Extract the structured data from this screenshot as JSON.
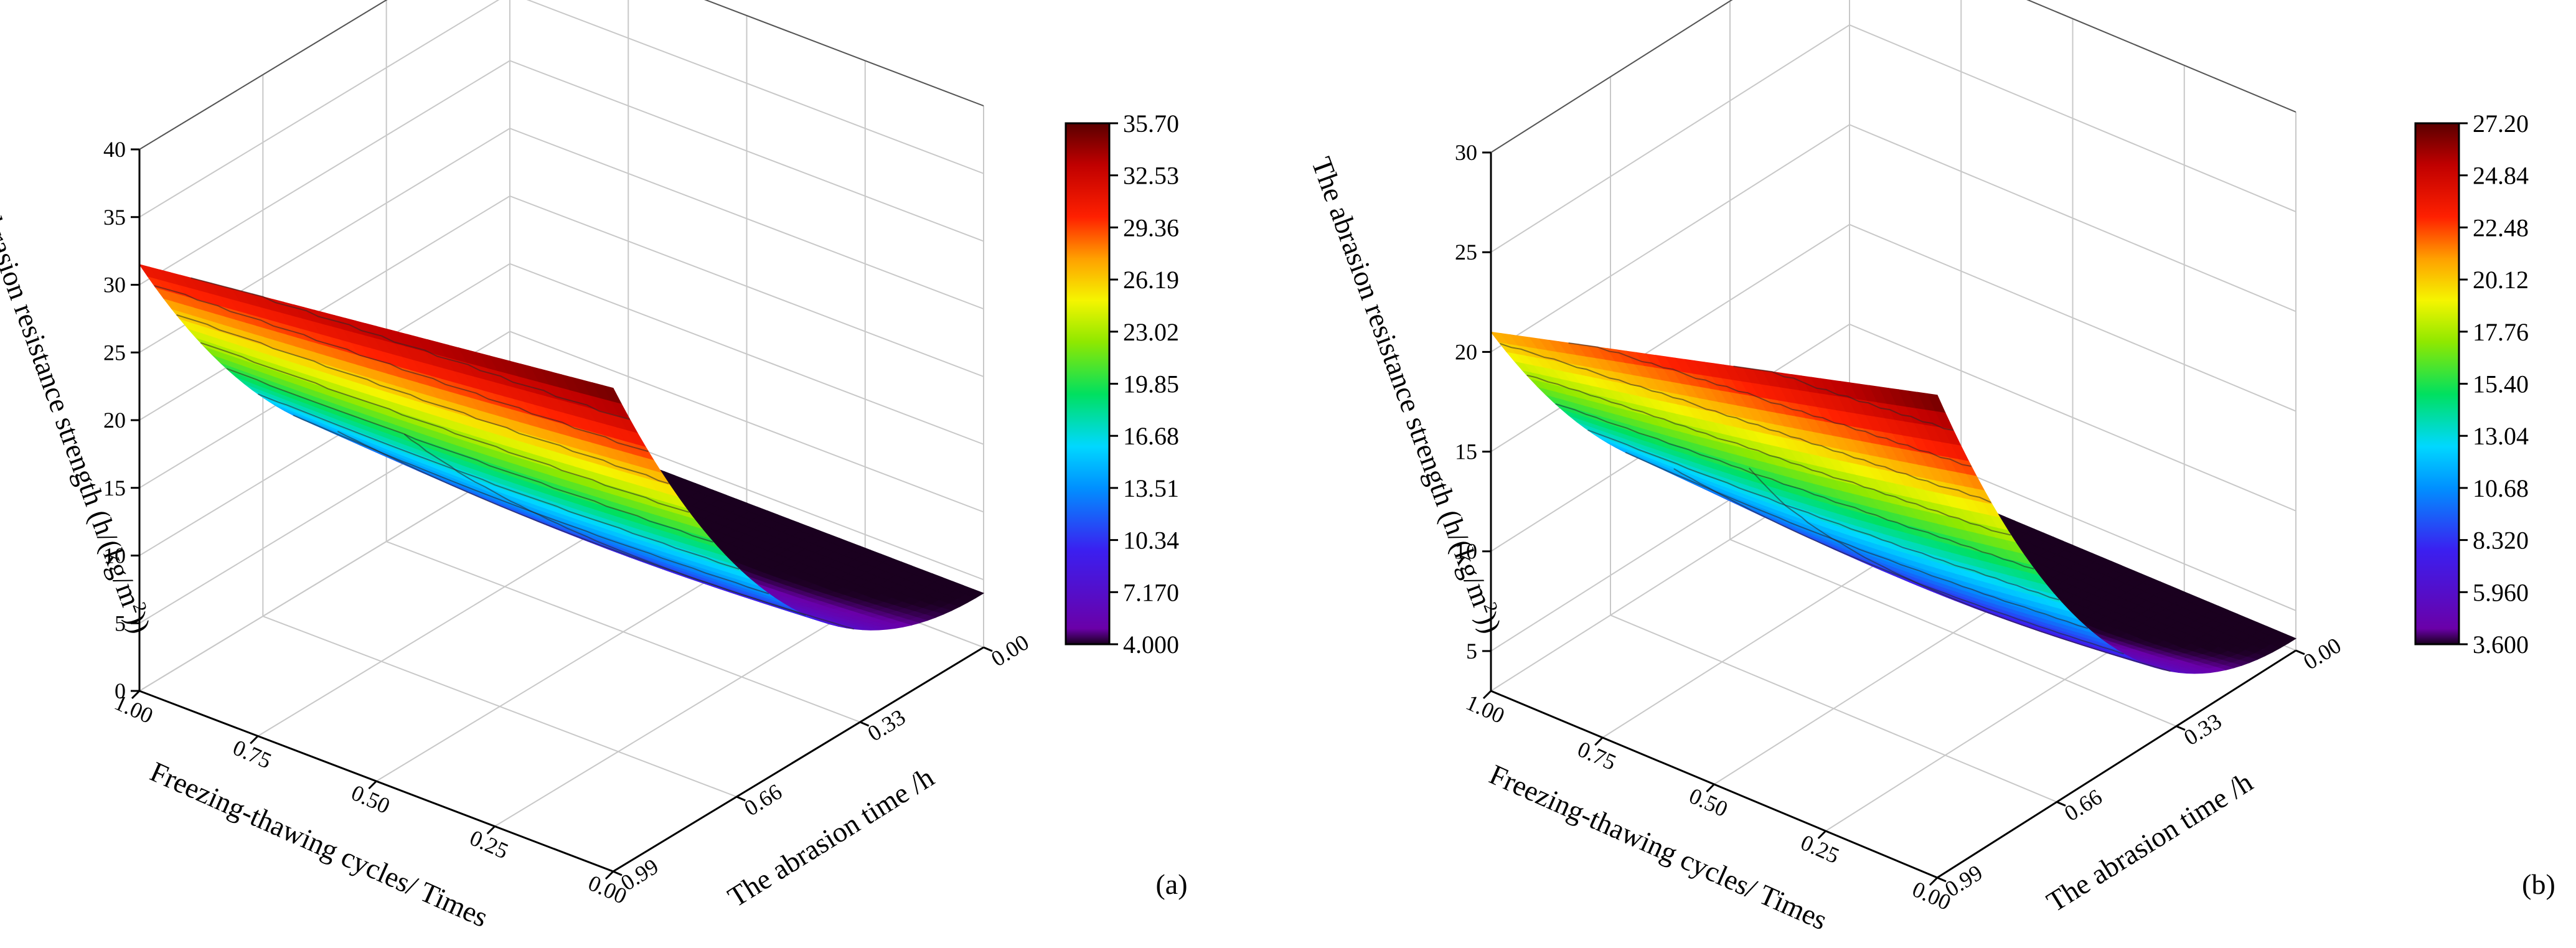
{
  "chart_data": [
    {
      "type": "surface",
      "panel_label": "(a)",
      "zlabel": "The abrasion resistance strength (h/(kg/m",
      "zlabel_sup": "2",
      "zlabel_end": "))",
      "xlabel": "Freezing-thawing cycles/ Times",
      "ylabel": "The abrasion time /h",
      "x_ticks": [
        "1.00",
        "0.75",
        "0.50",
        "0.25",
        "0.00"
      ],
      "y_ticks": [
        "0.00",
        "0.33",
        "0.66",
        "0.99"
      ],
      "z_ticks": [
        "0",
        "5",
        "10",
        "15",
        "20",
        "25",
        "30",
        "35",
        "40"
      ],
      "zlim": [
        0,
        40
      ],
      "colorbar_ticks": [
        "35.70",
        "32.53",
        "29.36",
        "26.19",
        "23.02",
        "19.85",
        "16.68",
        "13.51",
        "10.34",
        "7.170",
        "4.000"
      ],
      "colorbar_range": [
        4.0,
        35.7
      ],
      "surface_corners": {
        "ft1_t0": 5.5,
        "ft1_t099": 31.5,
        "ft0_t0": 4.0,
        "ft0_t099": 35.7,
        "min_region": 4.0
      },
      "grid": true
    },
    {
      "type": "surface",
      "panel_label": "(b)",
      "zlabel": "The abrasion resistance strength (h/(kg/m",
      "zlabel_sup": "2",
      "zlabel_end": "))",
      "xlabel": "Freezing-thawing cycles/ Times",
      "ylabel": "The abrasion time /h",
      "x_ticks": [
        "1.00",
        "0.75",
        "0.50",
        "0.25",
        "0.00"
      ],
      "y_ticks": [
        "0.00",
        "0.33",
        "0.66",
        "0.99"
      ],
      "z_ticks": [
        "5",
        "10",
        "15",
        "20",
        "25",
        "30"
      ],
      "zlim": [
        3,
        30
      ],
      "colorbar_ticks": [
        "27.20",
        "24.84",
        "22.48",
        "20.12",
        "17.76",
        "15.40",
        "13.04",
        "10.68",
        "8.320",
        "5.960",
        "3.600"
      ],
      "colorbar_range": [
        3.6,
        27.2
      ],
      "surface_corners": {
        "ft1_t0": 5.0,
        "ft1_t099": 21.0,
        "ft0_t0": 3.6,
        "ft0_t099": 27.2,
        "min_region": 3.6
      },
      "grid": true
    }
  ]
}
